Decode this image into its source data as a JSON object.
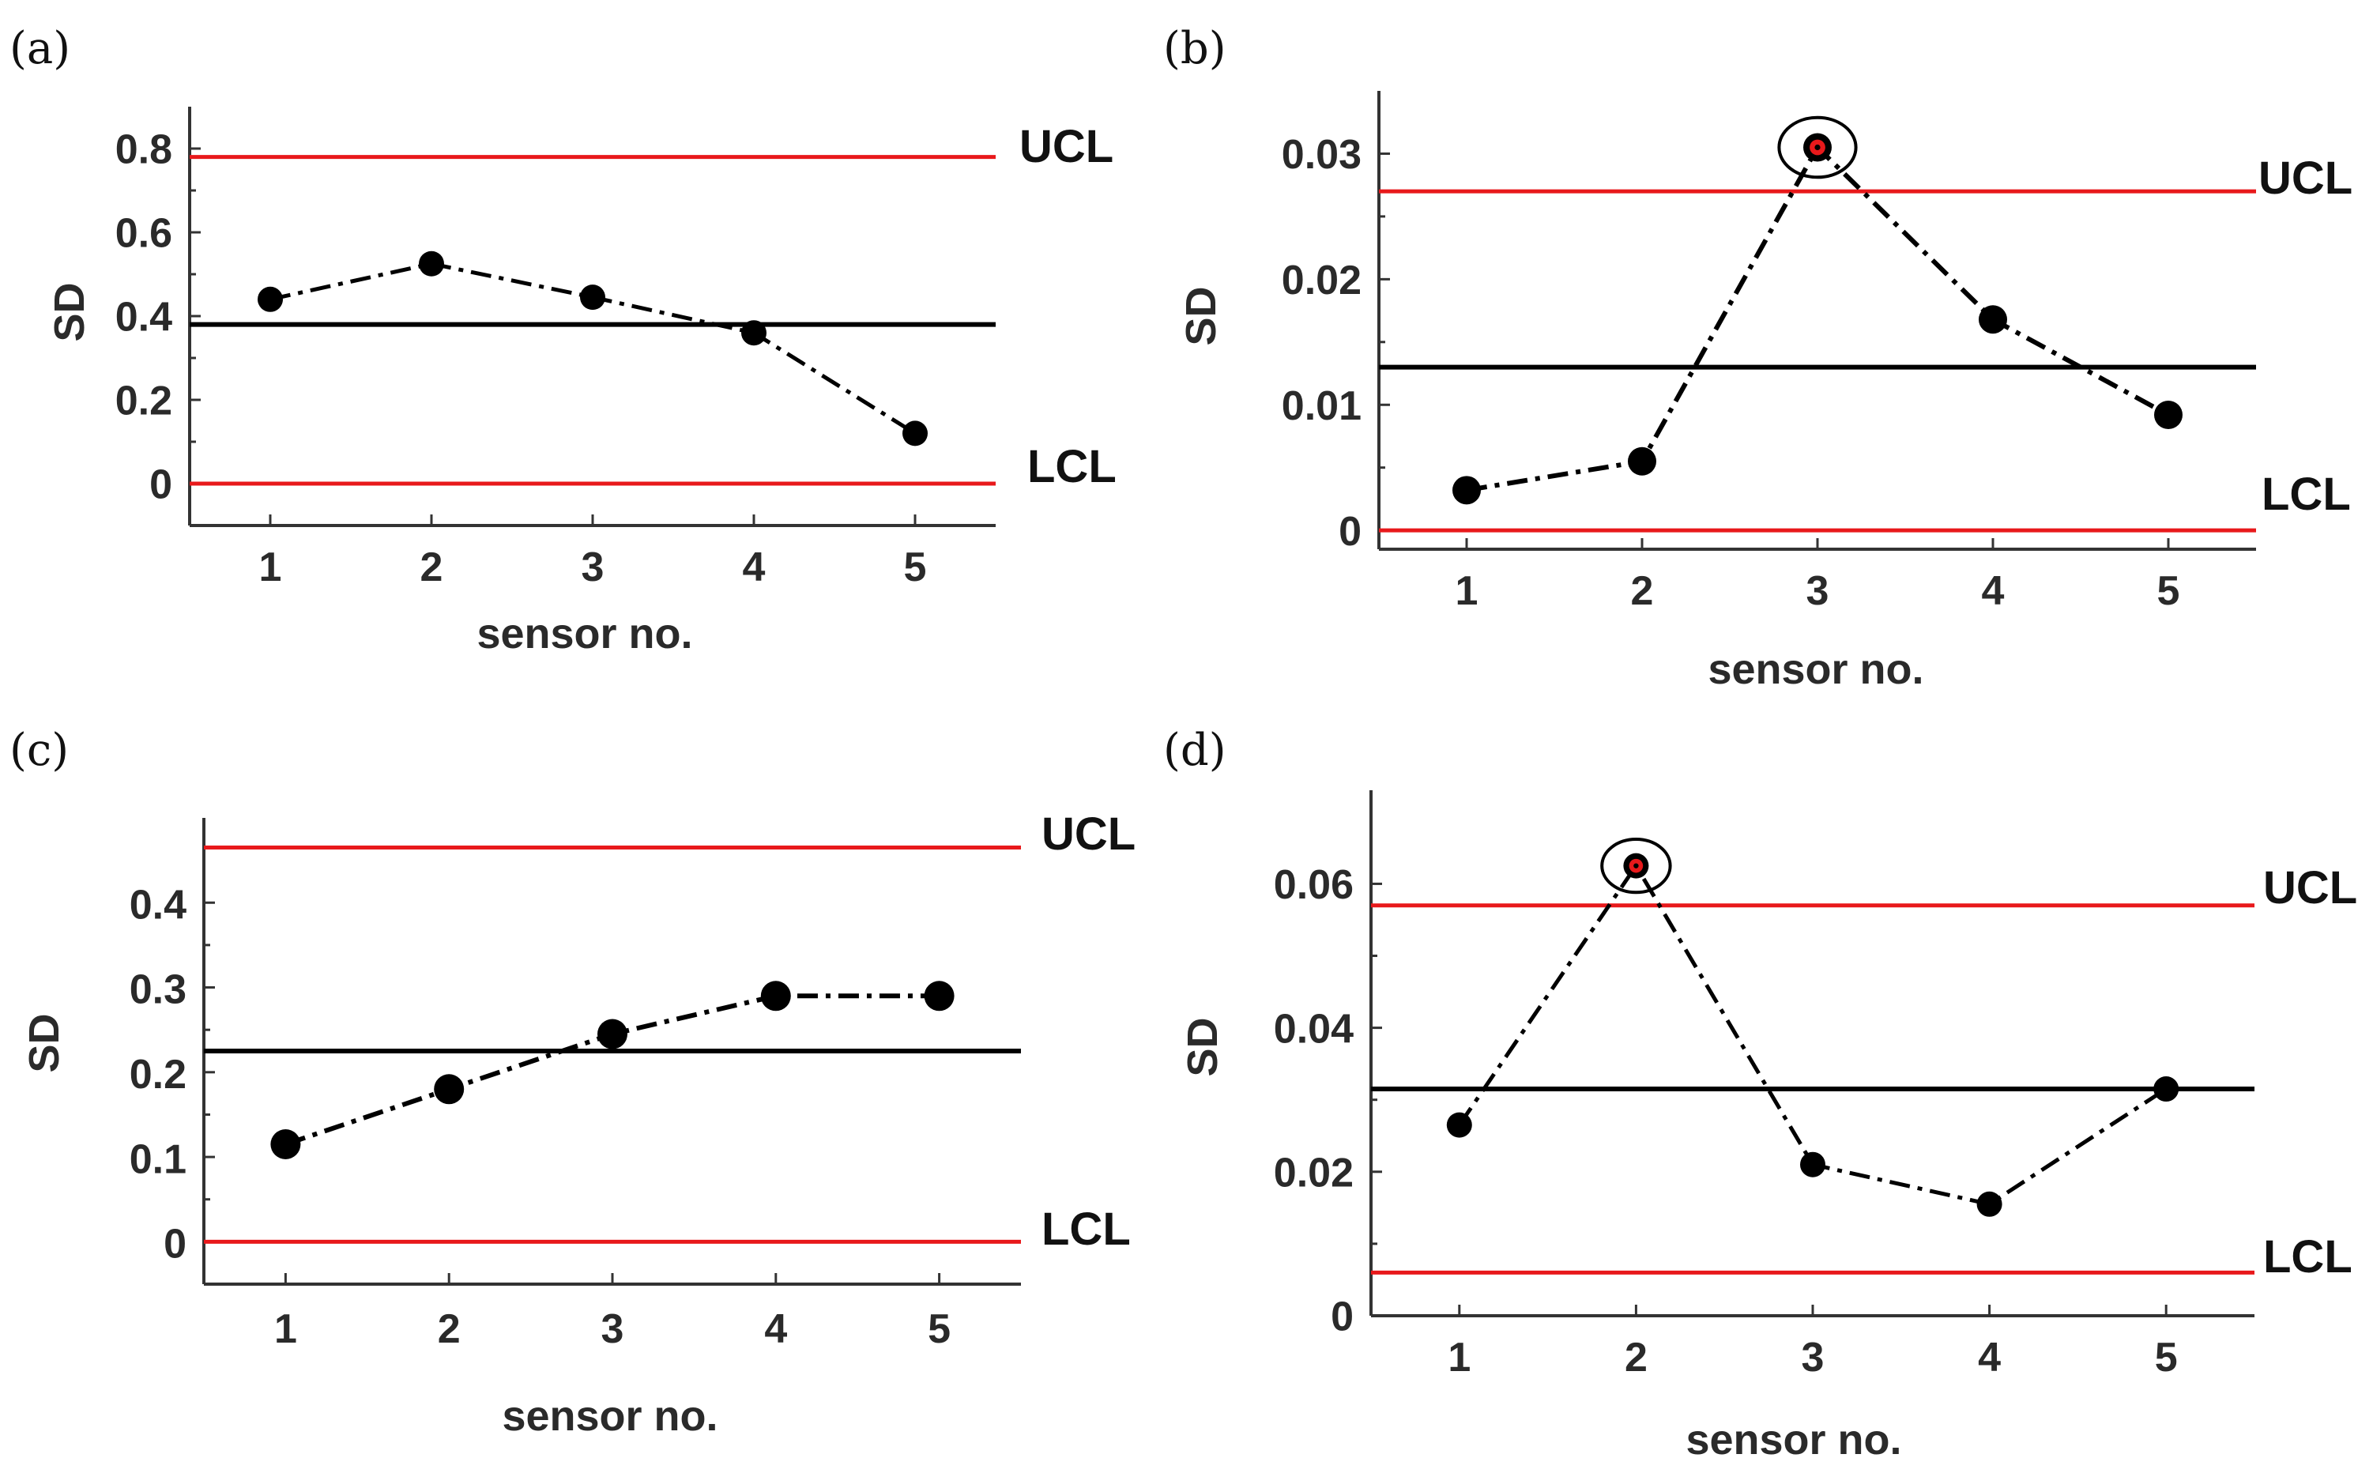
{
  "figure": {
    "colors": {
      "limit": "#e8191b",
      "center": "#000000",
      "series": "#000000",
      "highlight": "#e8191b"
    }
  },
  "chart_data": [
    {
      "panel": "(a)",
      "type": "line",
      "xlabel": "sensor no.",
      "ylabel": "SD",
      "x": [
        1,
        2,
        3,
        4,
        5
      ],
      "xticks": [
        "1",
        "2",
        "3",
        "4",
        "5"
      ],
      "xlim": [
        0.5,
        5.5
      ],
      "values": [
        0.44,
        0.525,
        0.445,
        0.36,
        0.12
      ],
      "yticks": [
        0,
        0.2,
        0.4,
        0.6,
        0.8
      ],
      "ytick_labels": [
        "0",
        "0.2",
        "0.4",
        "0.6",
        "0.8"
      ],
      "ylim": [
        -0.1,
        0.9
      ],
      "ucl": 0.78,
      "center": 0.38,
      "lcl": 0.0,
      "ucl_label": "UCL",
      "lcl_label": "LCL",
      "highlighted": []
    },
    {
      "panel": "(b)",
      "type": "line",
      "xlabel": "sensor no.",
      "ylabel": "SD",
      "x": [
        1,
        2,
        3,
        4,
        5
      ],
      "xticks": [
        "1",
        "2",
        "3",
        "4",
        "5"
      ],
      "xlim": [
        0.5,
        5.5
      ],
      "values": [
        0.0032,
        0.0055,
        0.0305,
        0.0168,
        0.0092
      ],
      "yticks": [
        0,
        0.01,
        0.02,
        0.03
      ],
      "ytick_labels": [
        "0",
        "0.01",
        "0.02",
        "0.03"
      ],
      "ylim": [
        -0.0015,
        0.035
      ],
      "ucl": 0.027,
      "center": 0.013,
      "lcl": 0.0,
      "ucl_label": "UCL",
      "lcl_label": "LCL",
      "highlighted": [
        3
      ]
    },
    {
      "panel": "(c)",
      "type": "line",
      "xlabel": "sensor no.",
      "ylabel": "SD",
      "x": [
        1,
        2,
        3,
        4,
        5
      ],
      "xticks": [
        "1",
        "2",
        "3",
        "4",
        "5"
      ],
      "xlim": [
        0.5,
        5.5
      ],
      "values": [
        0.115,
        0.18,
        0.245,
        0.29,
        0.29
      ],
      "yticks": [
        0,
        0.1,
        0.2,
        0.3,
        0.4
      ],
      "ytick_labels": [
        "0",
        "0.1",
        "0.2",
        "0.3",
        "0.4"
      ],
      "ylim": [
        -0.05,
        0.5
      ],
      "ucl": 0.465,
      "center": 0.225,
      "lcl": 0.0,
      "ucl_label": "UCL",
      "lcl_label": "LCL",
      "highlighted": []
    },
    {
      "panel": "(d)",
      "type": "line",
      "xlabel": "sensor no.",
      "ylabel": "SD",
      "x": [
        1,
        2,
        3,
        4,
        5
      ],
      "xticks": [
        "1",
        "2",
        "3",
        "4",
        "5"
      ],
      "xlim": [
        0.5,
        5.5
      ],
      "values": [
        0.0265,
        0.0625,
        0.021,
        0.0155,
        0.0315
      ],
      "yticks": [
        0,
        0.02,
        0.04,
        0.06
      ],
      "ytick_labels": [
        "0",
        "0.02",
        "0.04",
        "0.06"
      ],
      "ylim": [
        0,
        0.073
      ],
      "ucl": 0.057,
      "center": 0.0315,
      "lcl": 0.006,
      "ucl_label": "UCL",
      "lcl_label": "LCL",
      "highlighted": [
        2
      ]
    }
  ]
}
